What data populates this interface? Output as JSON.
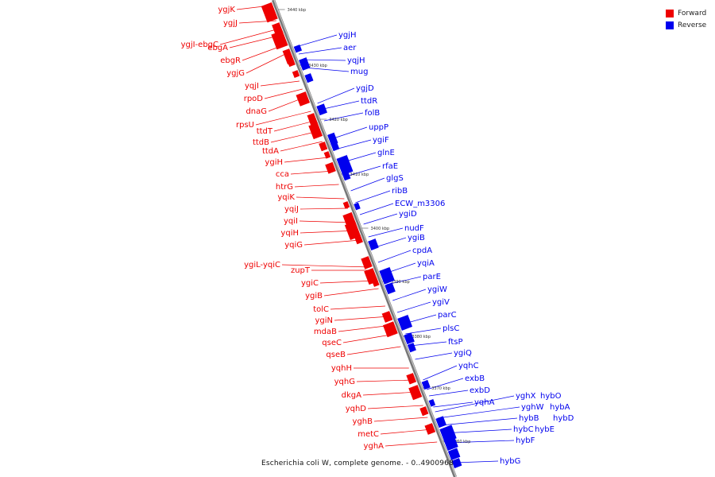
{
  "colors": {
    "forward": "#ee0000",
    "reverse": "#0000ee",
    "backbone": "#9a9a9a"
  },
  "legend": [
    {
      "label": "Forward",
      "color": "#ee0000"
    },
    {
      "label": "Reverse",
      "color": "#0000ee"
    }
  ],
  "caption": "Escherichia coli W, complete genome. - 0..4900968",
  "ticks": [
    "3440 kbp",
    "3430 kbp",
    "3420 kbp",
    "3410 kbp",
    "3400 kbp",
    "3390 kbp",
    "3380 kbp",
    "3370 kbp",
    "3360 kbp"
  ],
  "forward_genes": [
    "ygjK",
    "ygjJ",
    "ygjI-ebgC",
    "ebgA",
    "ebgR",
    "ygjG",
    "yqjI",
    "rpoD",
    "dnaG",
    "rpsU",
    "ttdT",
    "ttdB",
    "ttdA",
    "ygiH",
    "cca",
    "htrG",
    "yqiK",
    "yqiJ",
    "yqiI",
    "yqiH",
    "yqiG",
    "ygiL-yqiC",
    "zupT",
    "ygiC",
    "ygiB",
    "tolC",
    "ygiN",
    "mdaB",
    "qseC",
    "qseB",
    "yqhH",
    "yqhG",
    "dkgA",
    "yqhD",
    "yghB",
    "metC",
    "yghA"
  ],
  "reverse_genes": [
    "ygjH",
    "aer",
    "yqjH",
    "mug",
    "ygjD",
    "ttdR",
    "folB",
    "uppP",
    "ygiF",
    "glnE",
    "rfaE",
    "glgS",
    "ribB",
    "ECW_m3306",
    "ygiD",
    "nudF",
    "ygiB",
    "cpdA",
    "yqiA",
    "parE",
    "ygiW",
    "ygiV",
    "parC",
    "plsC",
    "ftsP",
    "ygiQ",
    "yqhC",
    "exbB",
    "exbD",
    "yqhA",
    "yghX",
    "hybO",
    "yghW",
    "hybA",
    "hybB",
    "hybD",
    "hybC",
    "hybE",
    "hybF",
    "hybG"
  ]
}
